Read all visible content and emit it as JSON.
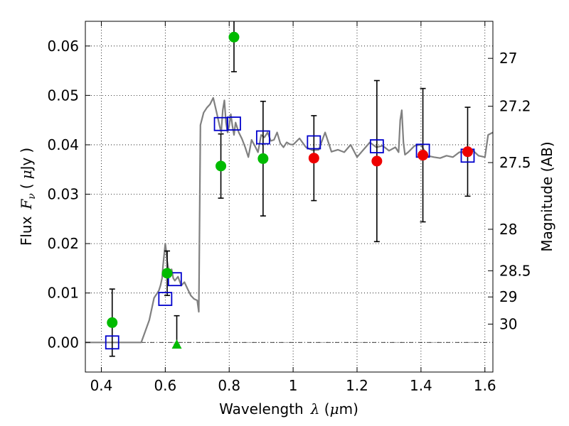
{
  "chart_data": {
    "type": "scatter",
    "xlabel": "Wavelength",
    "ylabel": "Flux",
    "y2label": "Magnitude (AB)",
    "xlim": [
      0.35,
      1.625
    ],
    "ylim": [
      -0.006,
      0.065
    ],
    "x_ticks": [
      0.4,
      0.6,
      0.8,
      1.0,
      1.2,
      1.4,
      1.6
    ],
    "x_tick_labels": [
      "0.4",
      "0.6",
      "0.8",
      "1",
      "1.2",
      "1.4",
      "1.6"
    ],
    "y_ticks": [
      0.0,
      0.01,
      0.02,
      0.03,
      0.04,
      0.05,
      0.06
    ],
    "y_tick_labels": [
      "0.00",
      "0.01",
      "0.02",
      "0.03",
      "0.04",
      "0.05",
      "0.06"
    ],
    "y2_ticks": [
      {
        "label": "27",
        "flux": 0.0575
      },
      {
        "label": "27.2",
        "flux": 0.0478
      },
      {
        "label": "27.5",
        "flux": 0.0364
      },
      {
        "label": "28",
        "flux": 0.0229
      },
      {
        "label": "28.5",
        "flux": 0.0145
      },
      {
        "label": "29",
        "flux": 0.0092
      },
      {
        "label": "30",
        "flux": 0.0037
      }
    ],
    "grid": true,
    "zero_line": true,
    "series": [
      {
        "marker": "line",
        "color": "#808080",
        "x": [
          0.35,
          0.525,
          0.55,
          0.565,
          0.58,
          0.585,
          0.59,
          0.593,
          0.596,
          0.6,
          0.603,
          0.606,
          0.61,
          0.615,
          0.62,
          0.625,
          0.63,
          0.64,
          0.65,
          0.66,
          0.67,
          0.68,
          0.69,
          0.7,
          0.705,
          0.71,
          0.72,
          0.73,
          0.74,
          0.75,
          0.76,
          0.77,
          0.775,
          0.78,
          0.785,
          0.79,
          0.795,
          0.8,
          0.805,
          0.81,
          0.815,
          0.82,
          0.83,
          0.84,
          0.85,
          0.86,
          0.87,
          0.88,
          0.89,
          0.9,
          0.91,
          0.92,
          0.93,
          0.94,
          0.95,
          0.96,
          0.97,
          0.98,
          0.99,
          1.0,
          1.02,
          1.04,
          1.06,
          1.08,
          1.1,
          1.12,
          1.14,
          1.16,
          1.18,
          1.2,
          1.22,
          1.24,
          1.26,
          1.28,
          1.3,
          1.32,
          1.33,
          1.335,
          1.34,
          1.345,
          1.35,
          1.36,
          1.38,
          1.4,
          1.42,
          1.44,
          1.46,
          1.48,
          1.5,
          1.52,
          1.54,
          1.56,
          1.58,
          1.6,
          1.61,
          1.625
        ],
        "y": [
          0.0,
          0.0,
          0.0045,
          0.009,
          0.0105,
          0.0115,
          0.013,
          0.0155,
          0.0175,
          0.02,
          0.0185,
          0.0165,
          0.015,
          0.014,
          0.0148,
          0.013,
          0.0125,
          0.0133,
          0.0115,
          0.0122,
          0.0108,
          0.0095,
          0.0088,
          0.0085,
          0.0062,
          0.044,
          0.0465,
          0.0475,
          0.0482,
          0.0495,
          0.0467,
          0.0438,
          0.0425,
          0.047,
          0.049,
          0.0445,
          0.0425,
          0.0438,
          0.0462,
          0.0439,
          0.042,
          0.0445,
          0.0425,
          0.0412,
          0.0395,
          0.0375,
          0.041,
          0.0398,
          0.0385,
          0.042,
          0.0415,
          0.0425,
          0.0408,
          0.041,
          0.0425,
          0.0403,
          0.0395,
          0.0405,
          0.0401,
          0.04,
          0.0413,
          0.0395,
          0.0389,
          0.039,
          0.0425,
          0.0386,
          0.039,
          0.0385,
          0.04,
          0.0375,
          0.039,
          0.0405,
          0.0395,
          0.0398,
          0.0388,
          0.0395,
          0.0385,
          0.045,
          0.047,
          0.0405,
          0.038,
          0.0385,
          0.0398,
          0.04,
          0.0378,
          0.0375,
          0.0373,
          0.0378,
          0.0375,
          0.0385,
          0.0385,
          0.039,
          0.0378,
          0.0375,
          0.042,
          0.0425
        ]
      },
      {
        "marker": "open-square",
        "color": "#0000cc",
        "x": [
          0.434,
          0.6,
          0.63,
          0.774,
          0.815,
          0.906,
          1.065,
          1.262,
          1.406,
          1.546
        ],
        "y": [
          0.0,
          0.0088,
          0.0128,
          0.0442,
          0.0443,
          0.0415,
          0.0405,
          0.0397,
          0.0388,
          0.0378
        ]
      },
      {
        "marker": "filled-circle",
        "color": "#00bb00",
        "x": [
          0.434,
          0.606,
          0.774,
          0.815,
          0.906
        ],
        "y": [
          0.004,
          0.014,
          0.0357,
          0.0618,
          0.0372
        ],
        "err": [
          0.0068,
          0.0045,
          0.0065,
          0.007,
          0.0116
        ]
      },
      {
        "marker": "filled-circle",
        "color": "#ee0000",
        "x": [
          1.065,
          1.262,
          1.406,
          1.546
        ],
        "y": [
          0.0373,
          0.0367,
          0.0379,
          0.0386
        ],
        "err": [
          0.0086,
          0.0163,
          0.0135,
          0.009
        ]
      },
      {
        "marker": "filled-triangle",
        "color": "#00bb00",
        "x": [
          0.636
        ],
        "y": [
          -0.0004
        ],
        "err_lower": 0.0,
        "err_upper": 0.0058
      }
    ]
  }
}
